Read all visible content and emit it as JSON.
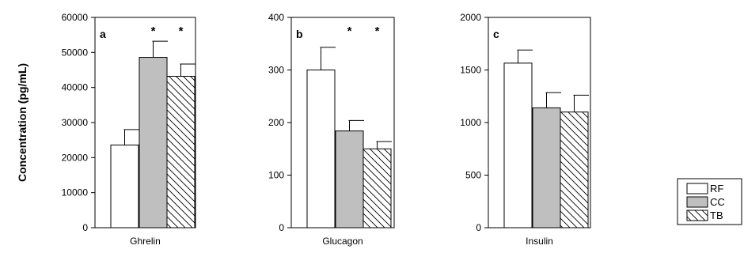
{
  "colors": {
    "RF": "#ffffff",
    "CC": "#bfbfbf",
    "TB": "hatch",
    "stroke": "#000000"
  },
  "ylabel": "Concentration (pg/mL)",
  "legend": {
    "placement": "bottom-right",
    "entries": [
      "RF",
      "CC",
      "TB"
    ]
  },
  "chart_data": [
    {
      "type": "bar",
      "panel_label": "a",
      "categories": [
        "Ghrelin"
      ],
      "ylim": [
        0,
        60000
      ],
      "yticks": [
        0,
        10000,
        20000,
        30000,
        40000,
        50000,
        60000
      ],
      "series": [
        {
          "name": "RF",
          "values": [
            23600
          ],
          "error": [
            4400
          ],
          "significant": false
        },
        {
          "name": "CC",
          "values": [
            48600
          ],
          "error": [
            4600
          ],
          "significant": true
        },
        {
          "name": "TB",
          "values": [
            43200
          ],
          "error": [
            3500
          ],
          "significant": true
        }
      ],
      "significance_mark": "*"
    },
    {
      "type": "bar",
      "panel_label": "b",
      "categories": [
        "Glucagon"
      ],
      "ylim": [
        0,
        400
      ],
      "yticks": [
        0,
        100,
        200,
        300,
        400
      ],
      "series": [
        {
          "name": "RF",
          "values": [
            300
          ],
          "error": [
            43
          ],
          "significant": false
        },
        {
          "name": "CC",
          "values": [
            184
          ],
          "error": [
            20
          ],
          "significant": true
        },
        {
          "name": "TB",
          "values": [
            150
          ],
          "error": [
            14
          ],
          "significant": true
        }
      ],
      "significance_mark": "*"
    },
    {
      "type": "bar",
      "panel_label": "c",
      "categories": [
        "Insulin"
      ],
      "ylim": [
        0,
        2000
      ],
      "yticks": [
        0,
        500,
        1000,
        1500,
        2000
      ],
      "series": [
        {
          "name": "RF",
          "values": [
            1565
          ],
          "error": [
            125
          ],
          "significant": false
        },
        {
          "name": "CC",
          "values": [
            1140
          ],
          "error": [
            145
          ],
          "significant": false
        },
        {
          "name": "TB",
          "values": [
            1100
          ],
          "error": [
            160
          ],
          "significant": false
        }
      ],
      "significance_mark": "*"
    }
  ]
}
